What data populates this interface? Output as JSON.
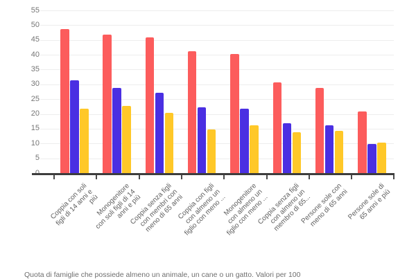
{
  "chart_data": {
    "type": "bar",
    "title": "",
    "xlabel": "",
    "ylabel": "",
    "ylim": [
      0,
      55
    ],
    "grid": true,
    "legend_position": "none",
    "y_ticks": [
      "0",
      "5",
      "10",
      "15",
      "20",
      "25",
      "30",
      "35",
      "40",
      "45",
      "50",
      "55",
      "60"
    ],
    "categories": [
      [
        "Coppia con soli",
        "figli di 14 anni e",
        "più"
      ],
      [
        "Monogenitore",
        "con soli figli di 14",
        "anni e più"
      ],
      [
        "Coppia senza figli",
        "con membri con",
        "meno di 65 anni"
      ],
      [
        "Coppia con figli",
        "con almeno un",
        "figlio con meno ..."
      ],
      [
        "Monogenitore",
        "con almeno un",
        "figlio con meno ..."
      ],
      [
        "Coppia senza figli",
        "con almeno un",
        "membro di 65..."
      ],
      [
        "Persone sole con",
        "meno di 65 anni"
      ],
      [
        "Persone sole di",
        "65 anni e più"
      ]
    ],
    "series": [
      {
        "name": "red-series",
        "color": "#FC5C5C",
        "values": [
          49,
          47,
          46,
          41.5,
          40.5,
          31,
          29,
          21
        ]
      },
      {
        "name": "blue-series",
        "color": "#4A2FE2",
        "values": [
          31.5,
          29,
          27.5,
          22.5,
          22,
          17,
          16.5,
          10
        ]
      },
      {
        "name": "yellow-series",
        "color": "#FFC828",
        "values": [
          22,
          23,
          20.5,
          15,
          16.5,
          14,
          14.5,
          10.5
        ]
      }
    ]
  },
  "caption": "Quota di famiglie che possiede almeno un animale, un cane o un gatto. Valori per 100"
}
